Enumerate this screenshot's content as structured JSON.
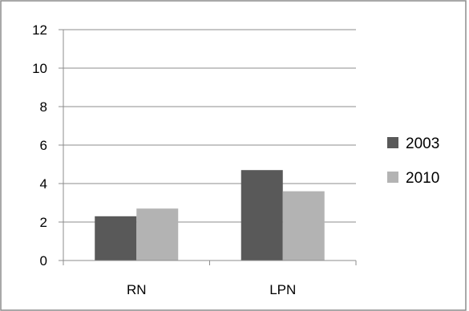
{
  "chart_data": {
    "type": "bar",
    "categories": [
      "RN",
      "LPN"
    ],
    "series": [
      {
        "name": "2003",
        "values": [
          2.3,
          4.7
        ],
        "color": "#595959"
      },
      {
        "name": "2010",
        "values": [
          2.7,
          3.6
        ],
        "color": "#b3b3b3"
      }
    ],
    "ylim": [
      0,
      12
    ],
    "yticks": [
      "0",
      "2",
      "4",
      "6",
      "8",
      "10",
      "12"
    ],
    "grid": true,
    "legend_position": "right"
  }
}
